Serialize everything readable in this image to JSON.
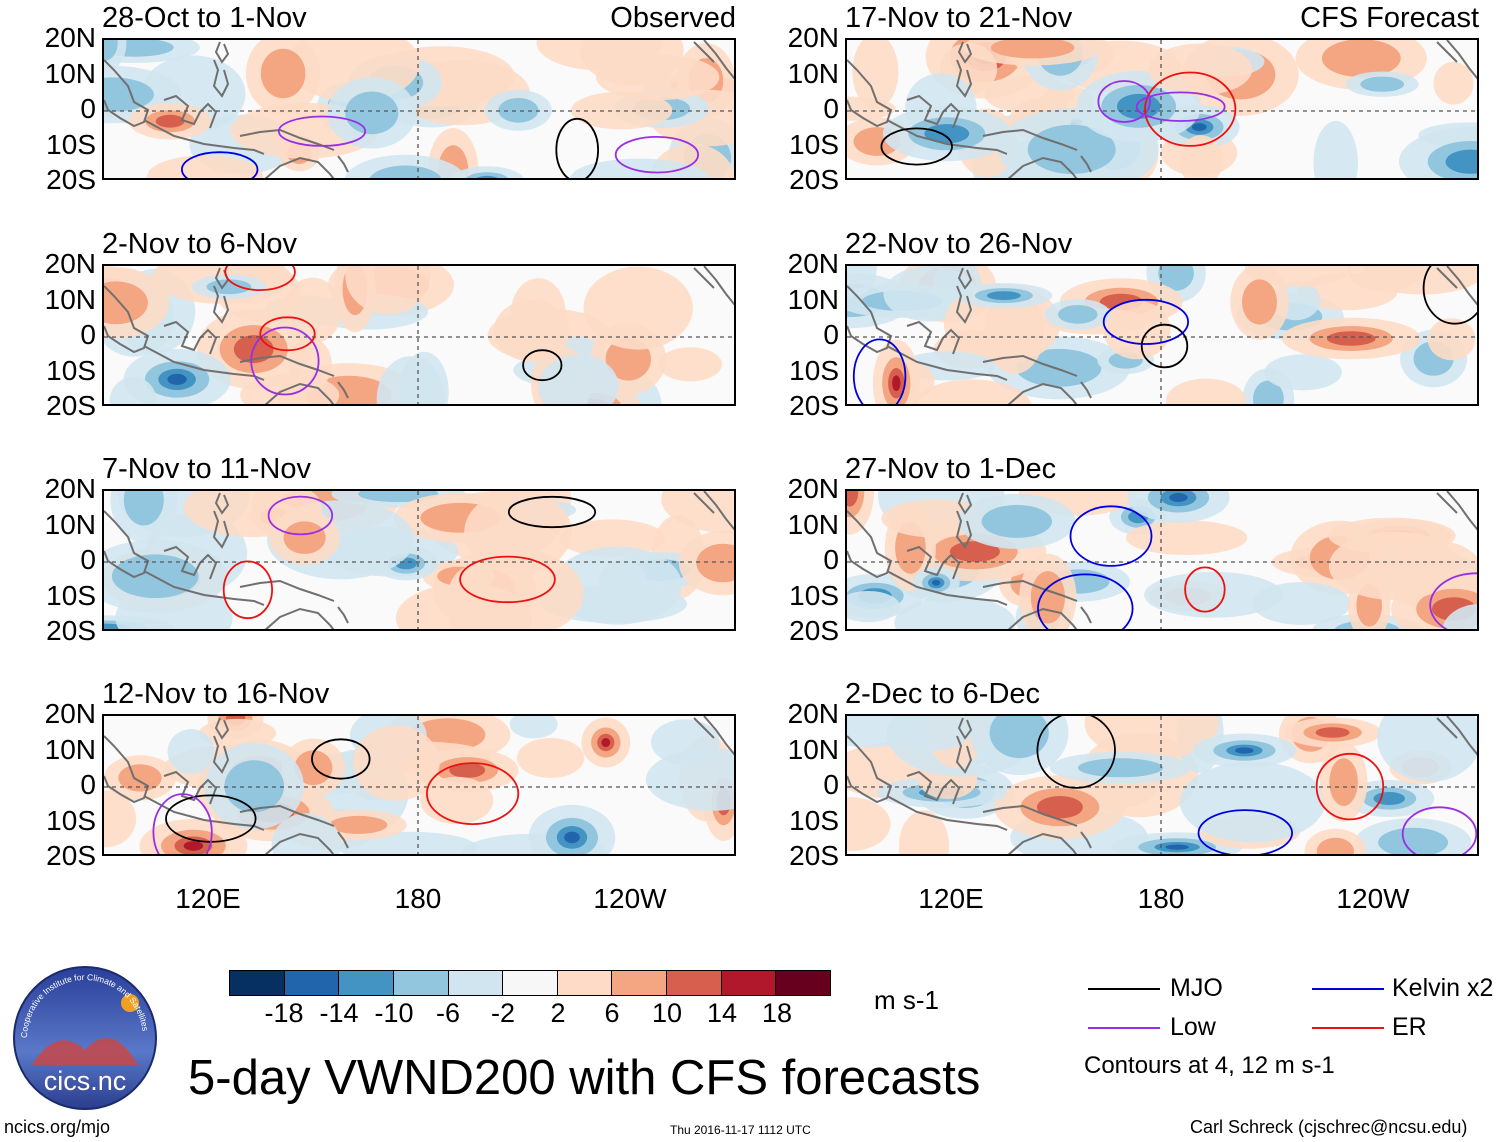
{
  "chart_data": {
    "type": "heatmap",
    "title": "5-day VWND200 with CFS forecasts",
    "variable": "VWND200",
    "units": "m s-1",
    "y_tick_labels": [
      "20N",
      "10N",
      "0",
      "10S",
      "20S"
    ],
    "x_tick_labels": [
      "120E",
      "180",
      "120W"
    ],
    "columns": [
      {
        "label": "Observed",
        "panels": [
          {
            "period": "28-Oct to 1-Nov"
          },
          {
            "period": "2-Nov to 6-Nov"
          },
          {
            "period": "7-Nov to 11-Nov"
          },
          {
            "period": "12-Nov to 16-Nov"
          }
        ]
      },
      {
        "label": "CFS Forecast",
        "panels": [
          {
            "period": "17-Nov to 21-Nov"
          },
          {
            "period": "22-Nov to 26-Nov"
          },
          {
            "period": "27-Nov to 1-Dec"
          },
          {
            "period": "2-Dec to 6-Dec"
          }
        ]
      }
    ],
    "colorbar": {
      "ticks": [
        "-18",
        "-14",
        "-10",
        "-6",
        "-2",
        "2",
        "6",
        "10",
        "14",
        "18"
      ],
      "colors": [
        "#053061",
        "#2166ac",
        "#4393c3",
        "#92c5de",
        "#d1e5f0",
        "#f7f7f7",
        "#fddbc7",
        "#f4a582",
        "#d6604d",
        "#b2182b",
        "#67001f"
      ]
    },
    "legend": [
      {
        "label": "MJO",
        "color": "#000000"
      },
      {
        "label": "Kelvin x2",
        "color": "#0000dd"
      },
      {
        "label": "Low",
        "color": "#9a2ee6"
      },
      {
        "label": "ER",
        "color": "#ee1111"
      }
    ],
    "contour_note": "Contours at 4, 12 m s-1"
  },
  "footer": {
    "site": "ncics.org/mjo",
    "timestamp": "Thu 2016-11-17 1112 UTC",
    "author": "Carl Schreck (cjschrec@ncsu.edu)"
  },
  "logo": {
    "text": "cics.nc",
    "ring_text": "Cooperative Institute for Climate and Satellites"
  }
}
